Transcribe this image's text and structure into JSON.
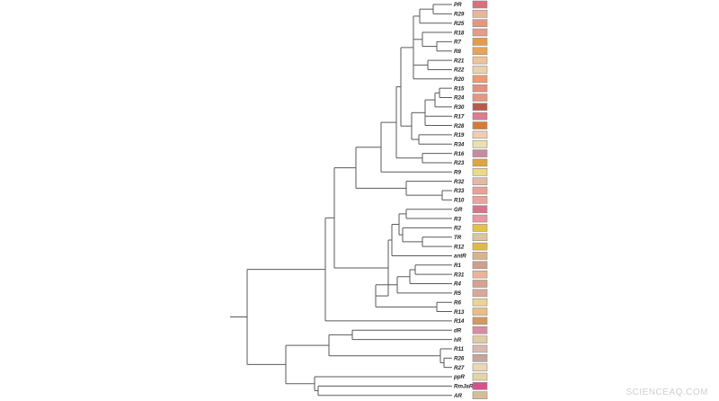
{
  "tree": {
    "leaves": [
      {
        "label": "PR",
        "color": "#d9707d"
      },
      {
        "label": "R29",
        "color": "#e9b69c"
      },
      {
        "label": "R25",
        "color": "#e19882"
      },
      {
        "label": "R18",
        "color": "#e59c88"
      },
      {
        "label": "R7",
        "color": "#e69a4a"
      },
      {
        "label": "R8",
        "color": "#e8a35a"
      },
      {
        "label": "R21",
        "color": "#eec39c"
      },
      {
        "label": "R22",
        "color": "#ecd0a8"
      },
      {
        "label": "R20",
        "color": "#eb9a72"
      },
      {
        "label": "R15",
        "color": "#e4907e"
      },
      {
        "label": "R24",
        "color": "#e39980"
      },
      {
        "label": "R30",
        "color": "#b65a4e"
      },
      {
        "label": "R17",
        "color": "#dc7c8e"
      },
      {
        "label": "R28",
        "color": "#d97a34"
      },
      {
        "label": "R19",
        "color": "#efcdb4"
      },
      {
        "label": "R34",
        "color": "#ece0b0"
      },
      {
        "label": "R16",
        "color": "#c88b9e"
      },
      {
        "label": "R23",
        "color": "#dea342"
      },
      {
        "label": "R9",
        "color": "#ecd88a"
      },
      {
        "label": "R32",
        "color": "#e6b8a2"
      },
      {
        "label": "R33",
        "color": "#e7a398"
      },
      {
        "label": "R10",
        "color": "#eba49a"
      },
      {
        "label": "GR",
        "color": "#d9738c"
      },
      {
        "label": "R3",
        "color": "#e799a2"
      },
      {
        "label": "R2",
        "color": "#e4c24a"
      },
      {
        "label": "TR",
        "color": "#dec4a2"
      },
      {
        "label": "R12",
        "color": "#dfbb44"
      },
      {
        "label": "antR",
        "color": "#d8b48c"
      },
      {
        "label": "R1",
        "color": "#cfa08c"
      },
      {
        "label": "R31",
        "color": "#e8b49a"
      },
      {
        "label": "R4",
        "color": "#d7a290"
      },
      {
        "label": "R5",
        "color": "#daa898"
      },
      {
        "label": "R6",
        "color": "#ead496"
      },
      {
        "label": "R13",
        "color": "#e8be86"
      },
      {
        "label": "R14",
        "color": "#d69760"
      },
      {
        "label": "dR",
        "color": "#d98ca0"
      },
      {
        "label": "hR",
        "color": "#dfcca4"
      },
      {
        "label": "R11",
        "color": "#d9b9ac"
      },
      {
        "label": "R26",
        "color": "#c4a69c"
      },
      {
        "label": "R27",
        "color": "#ead8b4"
      },
      {
        "label": "ppR",
        "color": "#e6d4a6"
      },
      {
        "label": "RmJaR",
        "color": "#d7528a"
      },
      {
        "label": "AR",
        "color": "#d2be98"
      }
    ]
  },
  "watermark": "SCIENCEAQ.COM"
}
